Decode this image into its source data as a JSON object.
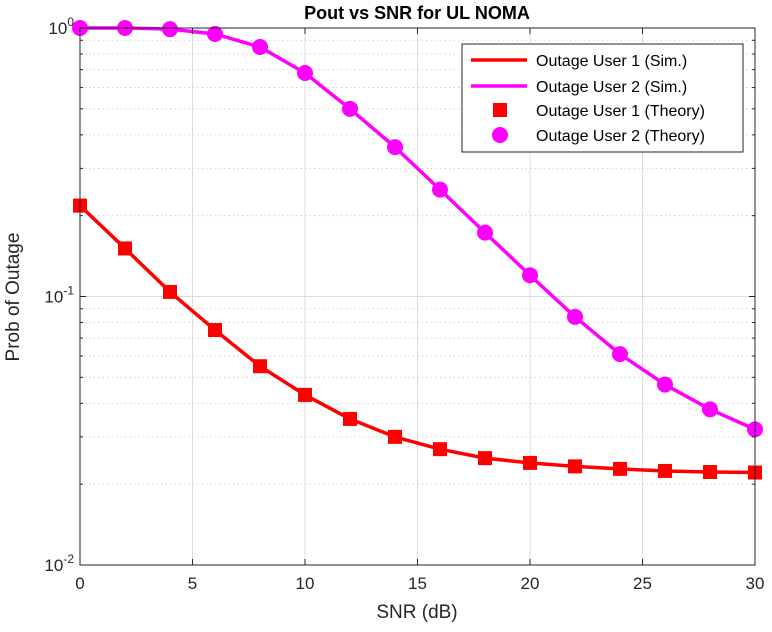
{
  "chart_data": {
    "type": "line",
    "title": "Pout vs SNR for UL NOMA",
    "xlabel": "SNR (dB)",
    "ylabel": "Prob of Outage",
    "xlim": [
      0,
      30
    ],
    "ylim": [
      0.01,
      1
    ],
    "yscale": "log",
    "grid": true,
    "legend_position": "top-right",
    "x_ticks": [
      0,
      5,
      10,
      15,
      20,
      25,
      30
    ],
    "x_tick_labels": [
      "0",
      "5",
      "10",
      "15",
      "20",
      "25",
      "30"
    ],
    "y_ticks": [
      {
        "value": 1,
        "base": "10",
        "exp": "0"
      },
      {
        "value": 0.1,
        "base": "10",
        "exp": "-1"
      },
      {
        "value": 0.01,
        "base": "10",
        "exp": "-2"
      }
    ],
    "x": [
      0,
      2,
      4,
      6,
      8,
      10,
      12,
      14,
      16,
      18,
      20,
      22,
      24,
      26,
      28,
      30
    ],
    "series": [
      {
        "name": "Outage User 1 (Sim.)",
        "kind": "line",
        "color": "#ff0000",
        "values": [
          0.218,
          0.151,
          0.104,
          0.075,
          0.055,
          0.043,
          0.035,
          0.03,
          0.027,
          0.025,
          0.024,
          0.0233,
          0.0228,
          0.0224,
          0.0222,
          0.0221
        ]
      },
      {
        "name": "Outage User 2 (Sim.)",
        "kind": "line",
        "color": "#ff00ff",
        "values": [
          1.0,
          1.0,
          0.99,
          0.95,
          0.85,
          0.68,
          0.5,
          0.36,
          0.25,
          0.173,
          0.12,
          0.084,
          0.061,
          0.047,
          0.038,
          0.032
        ]
      },
      {
        "name": "Outage User 1 (Theory)",
        "kind": "marker",
        "marker": "square",
        "color": "#ff0000",
        "values": [
          0.218,
          0.151,
          0.104,
          0.075,
          0.055,
          0.043,
          0.035,
          0.03,
          0.027,
          0.025,
          0.024,
          0.0233,
          0.0228,
          0.0224,
          0.0222,
          0.0221
        ]
      },
      {
        "name": "Outage User 2 (Theory)",
        "kind": "marker",
        "marker": "circle",
        "color": "#ff00ff",
        "values": [
          1.0,
          1.0,
          0.99,
          0.95,
          0.85,
          0.68,
          0.5,
          0.36,
          0.25,
          0.173,
          0.12,
          0.084,
          0.061,
          0.047,
          0.038,
          0.032
        ]
      }
    ]
  }
}
